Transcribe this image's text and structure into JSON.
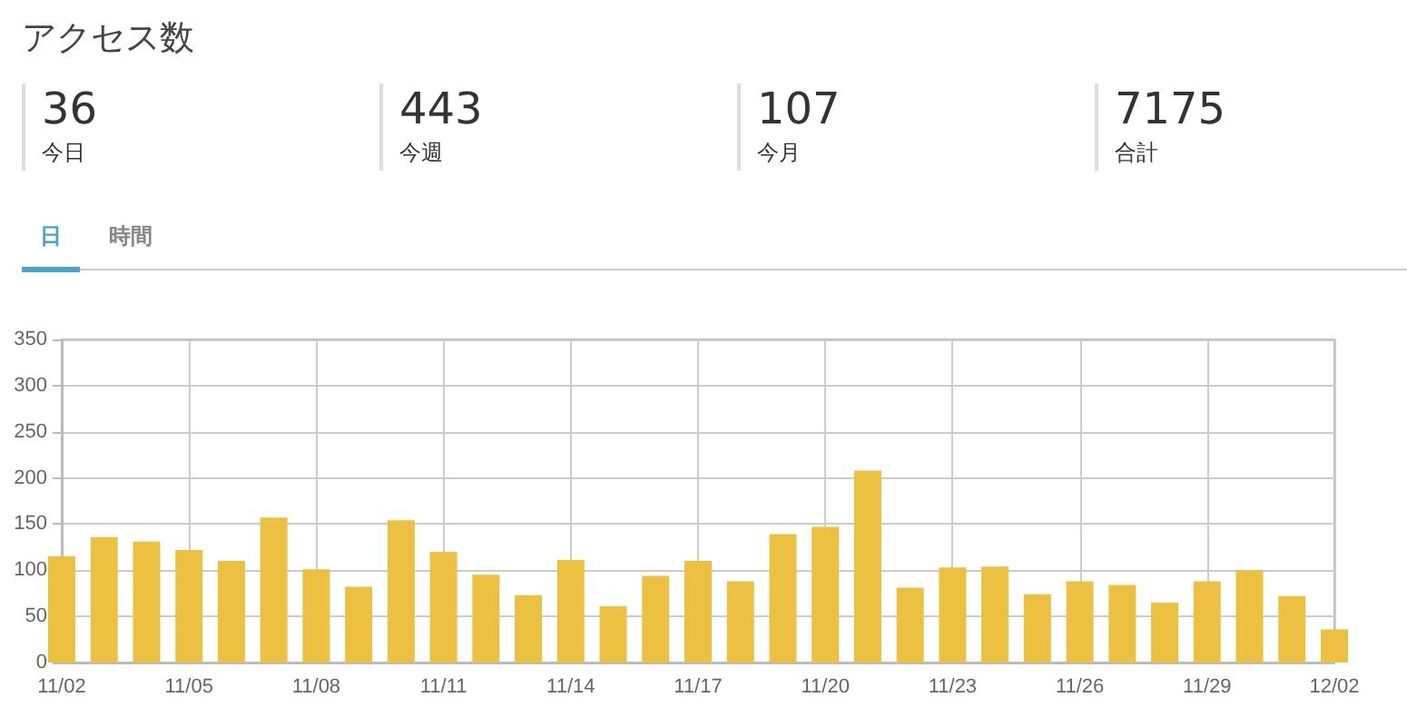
{
  "chart_data": {
    "type": "bar",
    "title": "アクセス数",
    "annotations": [
      "36",
      "今日",
      "443",
      "今週",
      "107",
      "今月",
      "7175",
      "合計",
      "日",
      "時間"
    ],
    "categories": [
      "11/02",
      null,
      null,
      "11/05",
      null,
      null,
      "11/08",
      null,
      null,
      "11/11",
      null,
      null,
      "11/14",
      null,
      null,
      "11/17",
      null,
      null,
      "11/20",
      null,
      null,
      "11/23",
      null,
      null,
      "11/26",
      null,
      null,
      "11/29",
      null,
      null,
      "12/02"
    ],
    "values": [
      115,
      136,
      131,
      122,
      110,
      157,
      101,
      82,
      154,
      120,
      95,
      73,
      111,
      61,
      94,
      110,
      88,
      139,
      147,
      208,
      81,
      103,
      104,
      74,
      88,
      84,
      65,
      88,
      100,
      72,
      36
    ],
    "color": "#ecc142",
    "ylim": [
      0,
      350
    ],
    "yticks": [
      0,
      50,
      100,
      150,
      200,
      250,
      300,
      350
    ],
    "grid": true
  }
}
